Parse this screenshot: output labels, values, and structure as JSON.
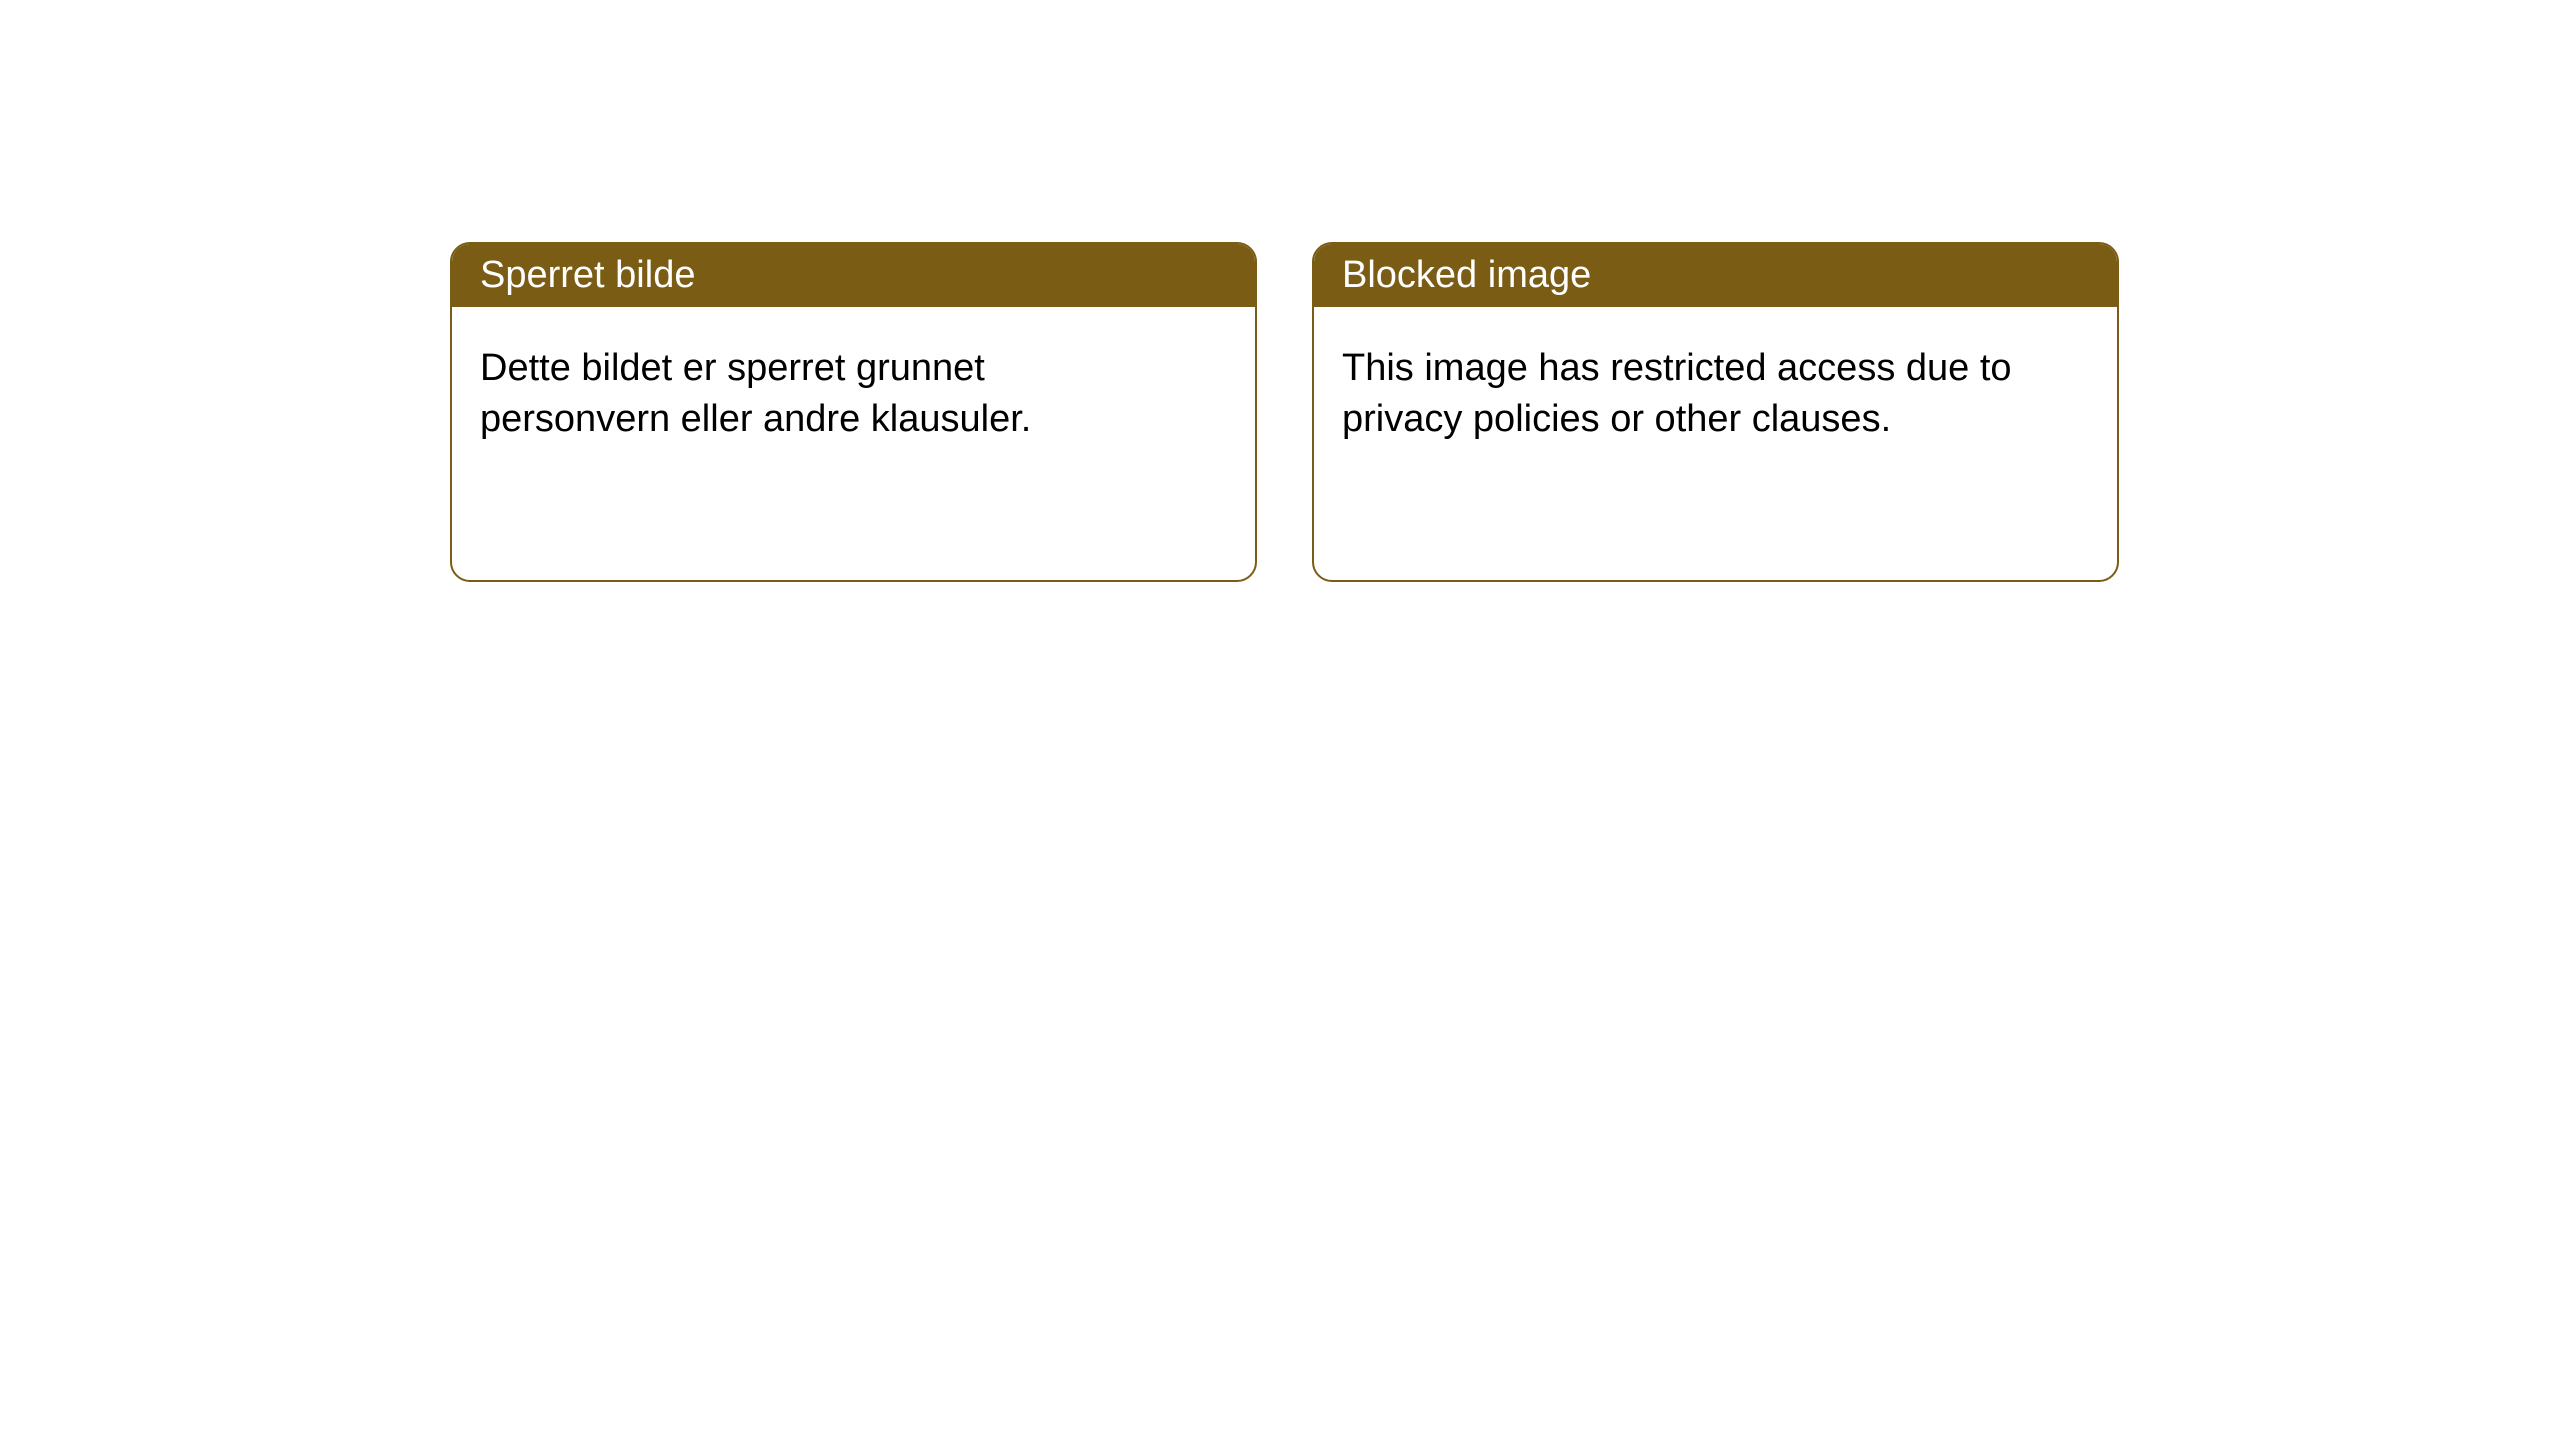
{
  "cards": [
    {
      "title": "Sperret bilde",
      "body": "Dette bildet er sperret grunnet personvern eller andre klausuler."
    },
    {
      "title": "Blocked image",
      "body": "This image has restricted access due to privacy policies or other clauses."
    }
  ],
  "style": {
    "header_bg": "#7a5c15",
    "header_text_color": "#ffffff",
    "card_border_color": "#7a5c15",
    "card_bg": "#ffffff",
    "body_text_color": "#000000",
    "page_bg": "#ffffff",
    "border_radius": 20,
    "header_fontsize": 38,
    "body_fontsize": 38
  }
}
